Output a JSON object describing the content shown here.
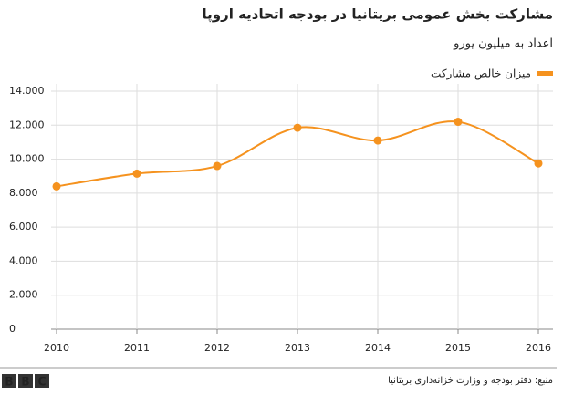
{
  "chart_data": {
    "type": "line",
    "title": "مشارکت بخش عمومی بریتانیا در بودجه اتحادیه اروپا",
    "subtitle": "اعداد به میلیون یورو",
    "x": [
      2010,
      2011,
      2012,
      2013,
      2014,
      2015,
      2016
    ],
    "series": [
      {
        "name": "میزان خالص مشارکت",
        "color": "#f5921e",
        "values": [
          8400,
          9150,
          9600,
          11850,
          11100,
          12200,
          9750
        ]
      }
    ],
    "xlim": [
      2010,
      2016
    ],
    "xticks": [
      2010,
      2011,
      2012,
      2013,
      2014,
      2015,
      2016
    ],
    "ylim": [
      0,
      14000
    ],
    "yticks": [
      0,
      {
        "value": 2000,
        "label": "2.000"
      },
      {
        "value": 4000,
        "label": "4.000"
      },
      {
        "value": 6000,
        "label": "6.000"
      },
      {
        "value": 8000,
        "label": "8.000"
      },
      {
        "value": 10000,
        "label": "10.000"
      },
      {
        "value": 12000,
        "label": "12.000"
      },
      {
        "value": 14000,
        "label": "14.000"
      }
    ],
    "grid": true,
    "legend": "top-right",
    "source": "منبع: دفتر بودجه و وزارت خزانه‌داری بریتانیا",
    "brand": [
      "B",
      "B",
      "C"
    ]
  }
}
